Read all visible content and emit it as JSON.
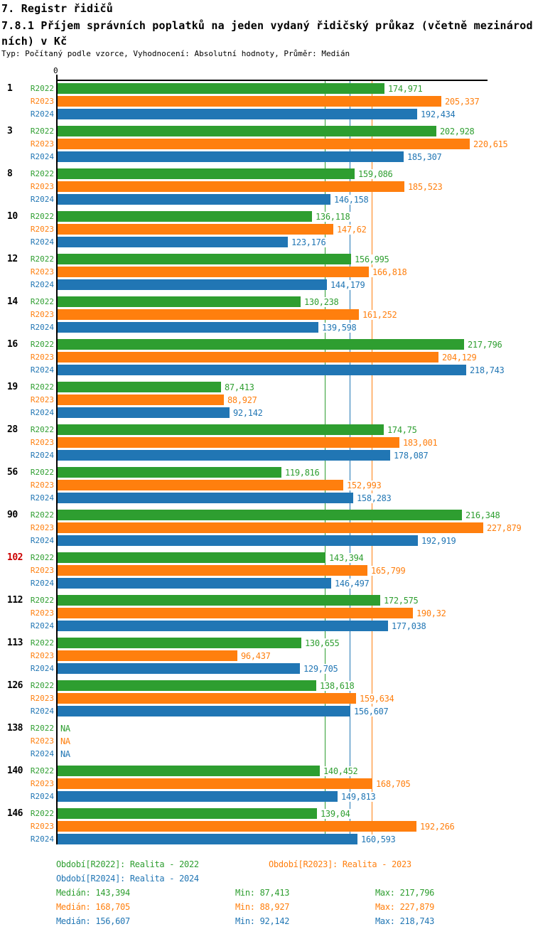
{
  "header": {
    "title": "7. Registr řidičů",
    "subtitle": "7.8.1 Příjem správních poplatků na jeden vydaný řidičský průkaz (včetně mezinárodních) v Kč",
    "meta": "Typ: Počítaný podle vzorce, Vyhodnocení: Absolutní hodnoty, Průměr: Medián",
    "axis_zero_label": "0"
  },
  "colors": {
    "r2022": "#2e9e30",
    "r2023": "#ff7f0e",
    "r2024": "#2176b4",
    "highlight_group": "#cc0000",
    "axis": "#000000"
  },
  "chart_data": {
    "type": "bar",
    "orientation": "horizontal",
    "series_labels": [
      "R2022",
      "R2023",
      "R2024"
    ],
    "value_axis": {
      "min": 0,
      "max": 230.6
    },
    "na_text": "NA",
    "median_lines": [
      {
        "series": "r2022",
        "value": 143.394
      },
      {
        "series": "r2024",
        "value": 156.607
      },
      {
        "series": "r2023",
        "value": 168.705
      }
    ],
    "groups": [
      {
        "id": "1",
        "highlight": false,
        "values": [
          {
            "display": "174,971",
            "value": 174.971
          },
          {
            "display": "205,337",
            "value": 205.337
          },
          {
            "display": "192,434",
            "value": 192.434
          }
        ]
      },
      {
        "id": "3",
        "highlight": false,
        "values": [
          {
            "display": "202,928",
            "value": 202.928
          },
          {
            "display": "220,615",
            "value": 220.615
          },
          {
            "display": "185,307",
            "value": 185.307
          }
        ]
      },
      {
        "id": "8",
        "highlight": false,
        "values": [
          {
            "display": "159,086",
            "value": 159.086
          },
          {
            "display": "185,523",
            "value": 185.523
          },
          {
            "display": "146,158",
            "value": 146.158
          }
        ]
      },
      {
        "id": "10",
        "highlight": false,
        "values": [
          {
            "display": "136,118",
            "value": 136.118
          },
          {
            "display": "147,62",
            "value": 147.62
          },
          {
            "display": "123,176",
            "value": 123.176
          }
        ]
      },
      {
        "id": "12",
        "highlight": false,
        "values": [
          {
            "display": "156,995",
            "value": 156.995
          },
          {
            "display": "166,818",
            "value": 166.818
          },
          {
            "display": "144,179",
            "value": 144.179
          }
        ]
      },
      {
        "id": "14",
        "highlight": false,
        "values": [
          {
            "display": "130,238",
            "value": 130.238
          },
          {
            "display": "161,252",
            "value": 161.252
          },
          {
            "display": "139,598",
            "value": 139.598
          }
        ]
      },
      {
        "id": "16",
        "highlight": false,
        "values": [
          {
            "display": "217,796",
            "value": 217.796
          },
          {
            "display": "204,129",
            "value": 204.129
          },
          {
            "display": "218,743",
            "value": 218.743
          }
        ]
      },
      {
        "id": "19",
        "highlight": false,
        "values": [
          {
            "display": "87,413",
            "value": 87.413
          },
          {
            "display": "88,927",
            "value": 88.927
          },
          {
            "display": "92,142",
            "value": 92.142
          }
        ]
      },
      {
        "id": "28",
        "highlight": false,
        "values": [
          {
            "display": "174,75",
            "value": 174.75
          },
          {
            "display": "183,001",
            "value": 183.001
          },
          {
            "display": "178,087",
            "value": 178.087
          }
        ]
      },
      {
        "id": "56",
        "highlight": false,
        "values": [
          {
            "display": "119,816",
            "value": 119.816
          },
          {
            "display": "152,993",
            "value": 152.993
          },
          {
            "display": "158,283",
            "value": 158.283
          }
        ]
      },
      {
        "id": "90",
        "highlight": false,
        "values": [
          {
            "display": "216,348",
            "value": 216.348
          },
          {
            "display": "227,879",
            "value": 227.879
          },
          {
            "display": "192,919",
            "value": 192.919
          }
        ]
      },
      {
        "id": "102",
        "highlight": true,
        "values": [
          {
            "display": "143,394",
            "value": 143.394
          },
          {
            "display": "165,799",
            "value": 165.799
          },
          {
            "display": "146,497",
            "value": 146.497
          }
        ]
      },
      {
        "id": "112",
        "highlight": false,
        "values": [
          {
            "display": "172,575",
            "value": 172.575
          },
          {
            "display": "190,32",
            "value": 190.32
          },
          {
            "display": "177,038",
            "value": 177.038
          }
        ]
      },
      {
        "id": "113",
        "highlight": false,
        "values": [
          {
            "display": "130,655",
            "value": 130.655
          },
          {
            "display": "96,437",
            "value": 96.437
          },
          {
            "display": "129,705",
            "value": 129.705
          }
        ]
      },
      {
        "id": "126",
        "highlight": false,
        "values": [
          {
            "display": "138,618",
            "value": 138.618
          },
          {
            "display": "159,634",
            "value": 159.634
          },
          {
            "display": "156,607",
            "value": 156.607
          }
        ]
      },
      {
        "id": "138",
        "highlight": false,
        "values": [
          {
            "display": "NA",
            "value": null
          },
          {
            "display": "NA",
            "value": null
          },
          {
            "display": "NA",
            "value": null
          }
        ]
      },
      {
        "id": "140",
        "highlight": false,
        "values": [
          {
            "display": "140,452",
            "value": 140.452
          },
          {
            "display": "168,705",
            "value": 168.705
          },
          {
            "display": "149,813",
            "value": 149.813
          }
        ]
      },
      {
        "id": "146",
        "highlight": false,
        "values": [
          {
            "display": "139,04",
            "value": 139.04
          },
          {
            "display": "192,266",
            "value": 192.266
          },
          {
            "display": "160,593",
            "value": 160.593
          }
        ]
      }
    ]
  },
  "footer": {
    "legend": {
      "r2022": "Období[R2022]: Realita - 2022",
      "r2023": "Období[R2023]: Realita - 2023",
      "r2024": "Období[R2024]: Realita - 2024"
    },
    "stats": {
      "r2022": {
        "median": "Medián: 143,394",
        "min": "Min: 87,413",
        "max": "Max: 217,796"
      },
      "r2023": {
        "median": "Medián: 168,705",
        "min": "Min: 88,927",
        "max": "Max: 227,879"
      },
      "r2024": {
        "median": "Medián: 156,607",
        "min": "Min: 92,142",
        "max": "Max: 218,743"
      }
    }
  }
}
